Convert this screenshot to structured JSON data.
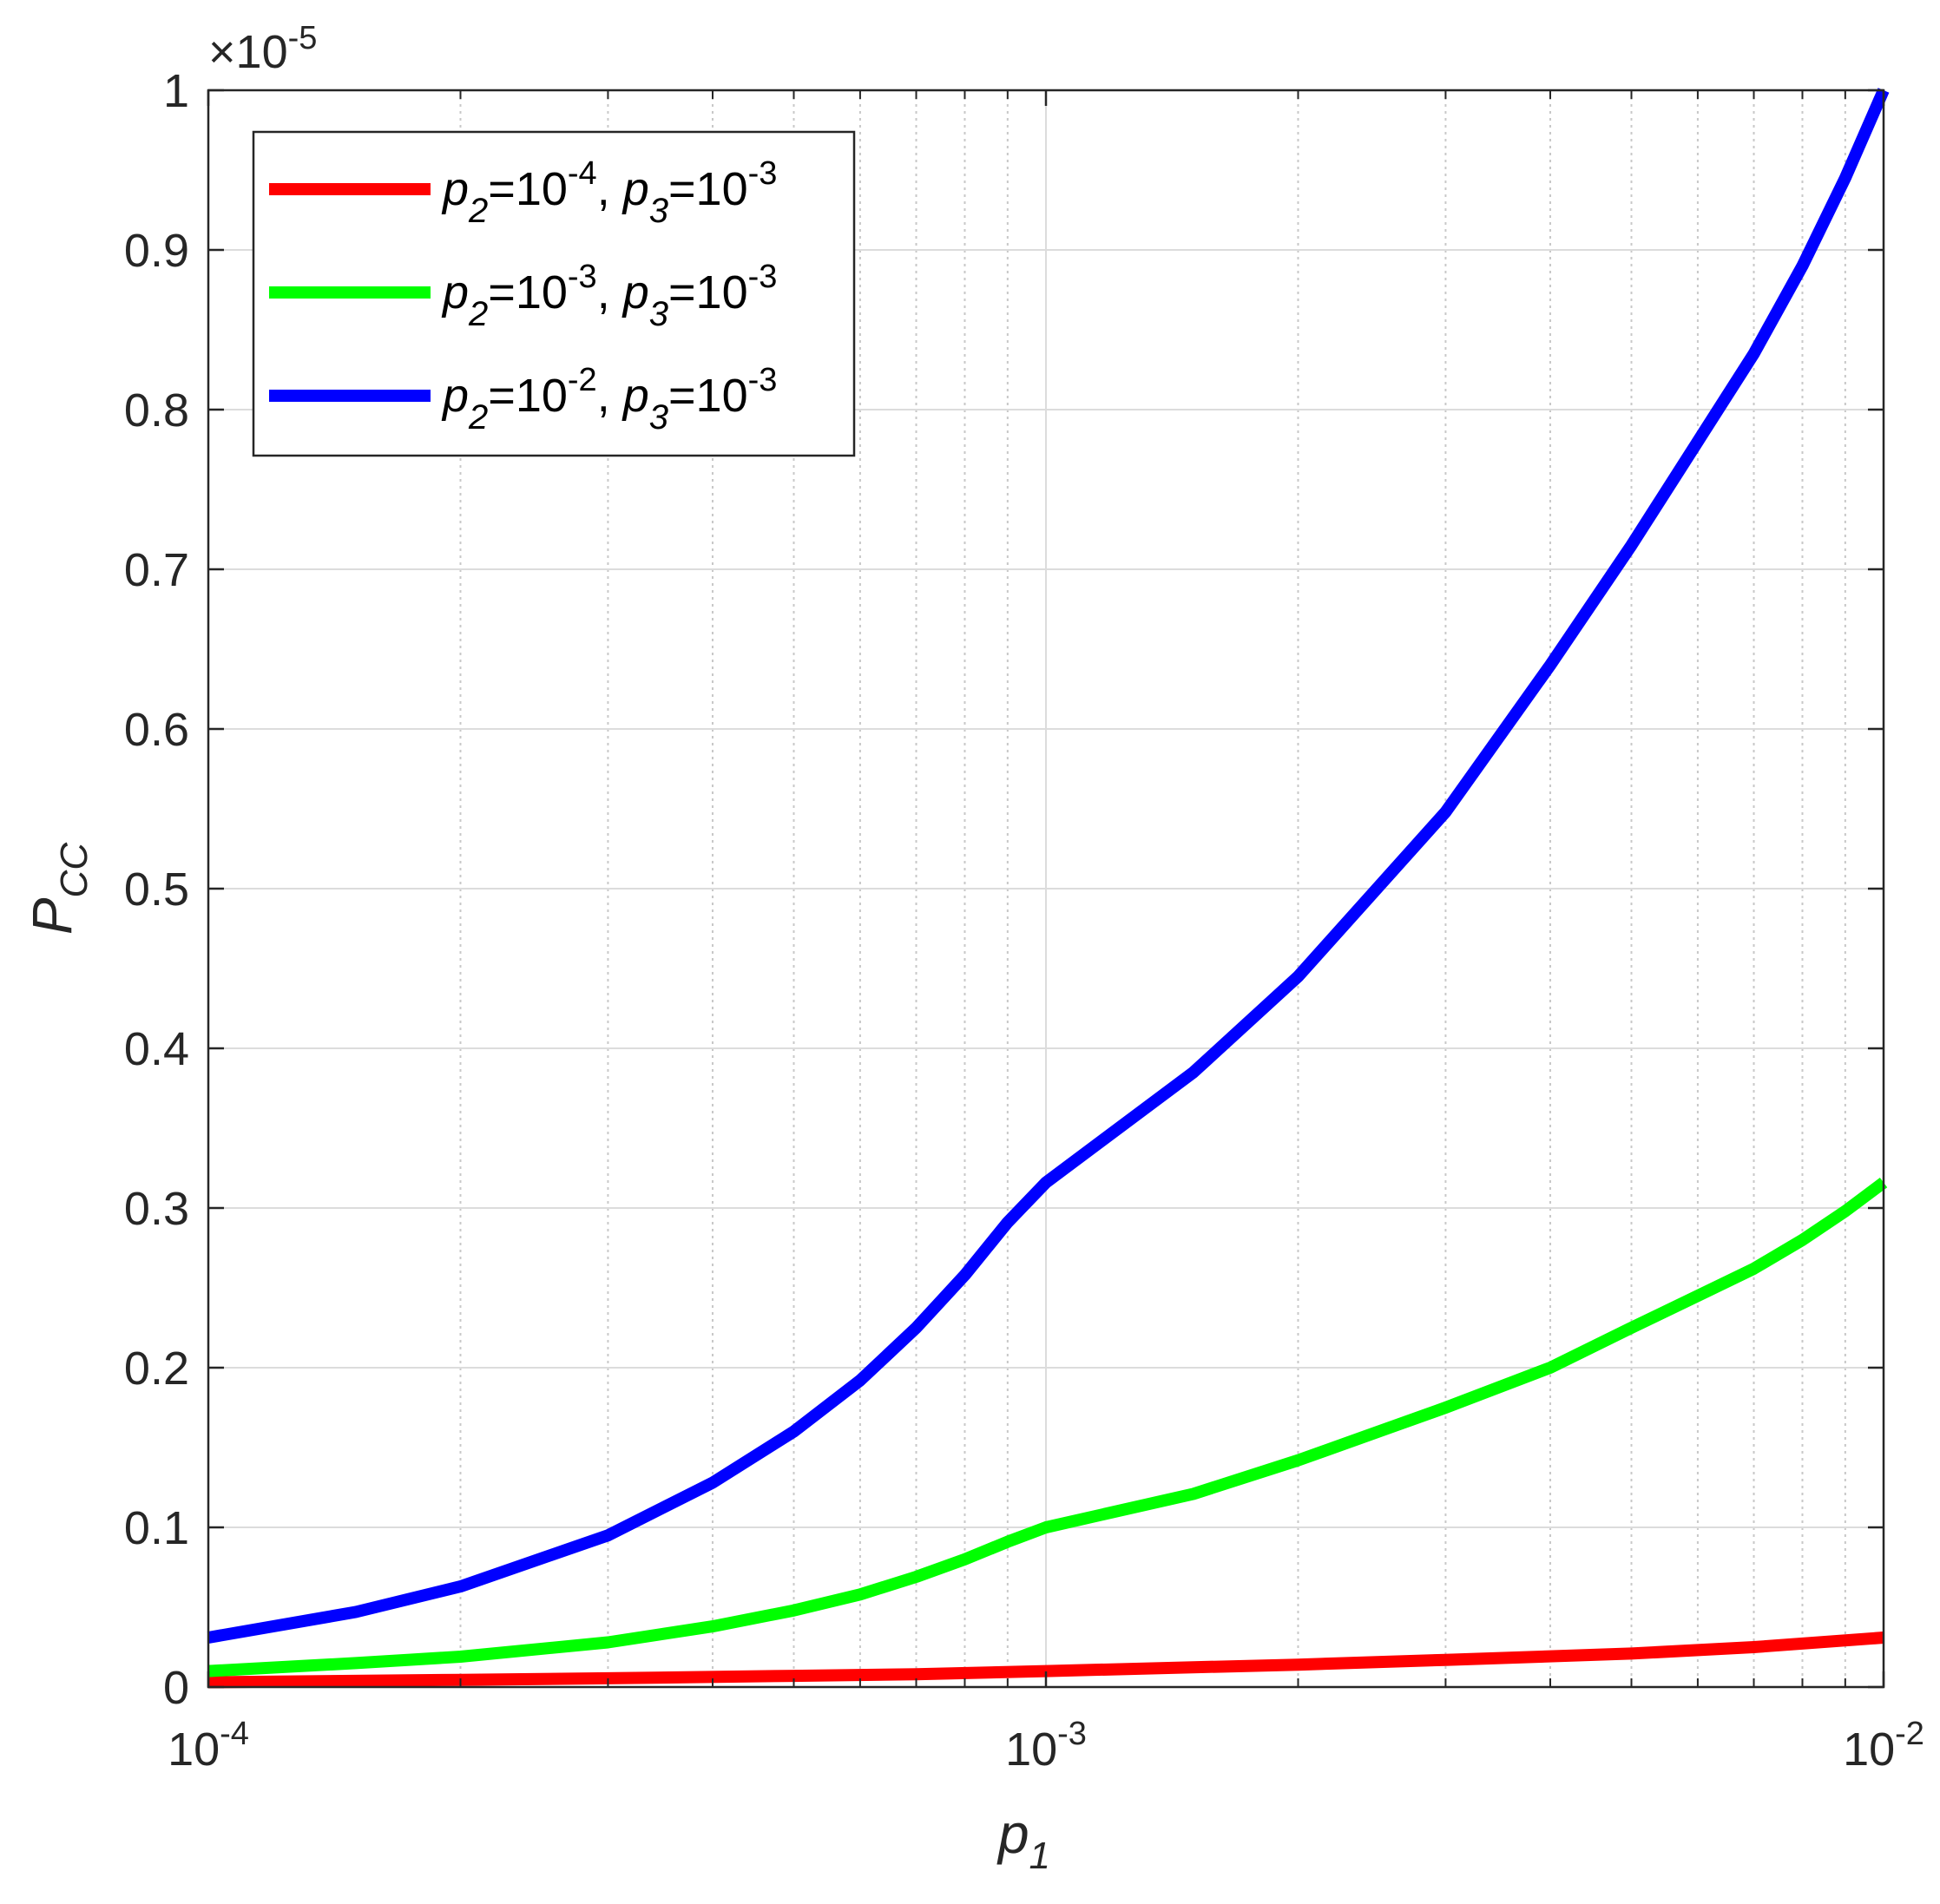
{
  "chart_data": {
    "type": "line",
    "xscale": "log",
    "xlim": [
      0.0001,
      0.01
    ],
    "ylim": [
      0,
      1
    ],
    "y_multiplier": {
      "base": "×10",
      "exponent": "-5"
    },
    "xlabel": {
      "main": "p",
      "sub": "1"
    },
    "ylabel": {
      "main": "P",
      "sub": "CC"
    },
    "grid": true,
    "legend_position": "top-left",
    "x_ticks": [
      {
        "value": 0.0001,
        "base": "10",
        "exp": "-4"
      },
      {
        "value": 0.001,
        "base": "10",
        "exp": "-3"
      },
      {
        "value": 0.01,
        "base": "10",
        "exp": "-2"
      }
    ],
    "y_ticks": [
      {
        "value": 0,
        "label": "0"
      },
      {
        "value": 0.1,
        "label": "0.1"
      },
      {
        "value": 0.2,
        "label": "0.2"
      },
      {
        "value": 0.3,
        "label": "0.3"
      },
      {
        "value": 0.4,
        "label": "0.4"
      },
      {
        "value": 0.5,
        "label": "0.5"
      },
      {
        "value": 0.6,
        "label": "0.6"
      },
      {
        "value": 0.7,
        "label": "0.7"
      },
      {
        "value": 0.8,
        "label": "0.8"
      },
      {
        "value": 0.9,
        "label": "0.9"
      },
      {
        "value": 1,
        "label": "1"
      }
    ],
    "series": [
      {
        "color": "#ff0000",
        "legend": {
          "p2_exp": "-4",
          "p3_exp": "-3"
        },
        "x": [
          0.0001,
          0.0002,
          0.0003,
          0.0005,
          0.0007,
          0.001,
          0.002,
          0.003,
          0.005,
          0.007,
          0.01
        ],
        "y": [
          0.003,
          0.0045,
          0.0055,
          0.007,
          0.008,
          0.01,
          0.014,
          0.017,
          0.021,
          0.025,
          0.031
        ]
      },
      {
        "color": "#00ff00",
        "legend": {
          "p2_exp": "-3",
          "p3_exp": "-3"
        },
        "x": [
          0.0001,
          0.00015,
          0.0002,
          0.0003,
          0.0004,
          0.0005,
          0.0006,
          0.0007,
          0.0008,
          0.0009,
          0.001,
          0.0015,
          0.002,
          0.003,
          0.004,
          0.005,
          0.006,
          0.007,
          0.008,
          0.009,
          0.01
        ],
        "y": [
          0.01,
          0.015,
          0.019,
          0.028,
          0.038,
          0.048,
          0.058,
          0.069,
          0.08,
          0.091,
          0.1,
          0.121,
          0.142,
          0.175,
          0.2,
          0.225,
          0.245,
          0.262,
          0.28,
          0.298,
          0.316
        ]
      },
      {
        "color": "#0000ff",
        "legend": {
          "p2_exp": "-2",
          "p3_exp": "-3"
        },
        "x": [
          0.0001,
          0.00015,
          0.0002,
          0.0003,
          0.0004,
          0.0005,
          0.0006,
          0.0007,
          0.0008,
          0.0009,
          0.001,
          0.0015,
          0.002,
          0.003,
          0.004,
          0.005,
          0.006,
          0.007,
          0.008,
          0.009,
          0.01
        ],
        "y": [
          0.031,
          0.047,
          0.063,
          0.095,
          0.128,
          0.16,
          0.192,
          0.225,
          0.258,
          0.291,
          0.316,
          0.385,
          0.445,
          0.548,
          0.64,
          0.715,
          0.78,
          0.835,
          0.89,
          0.945,
          1.0
        ]
      }
    ]
  }
}
